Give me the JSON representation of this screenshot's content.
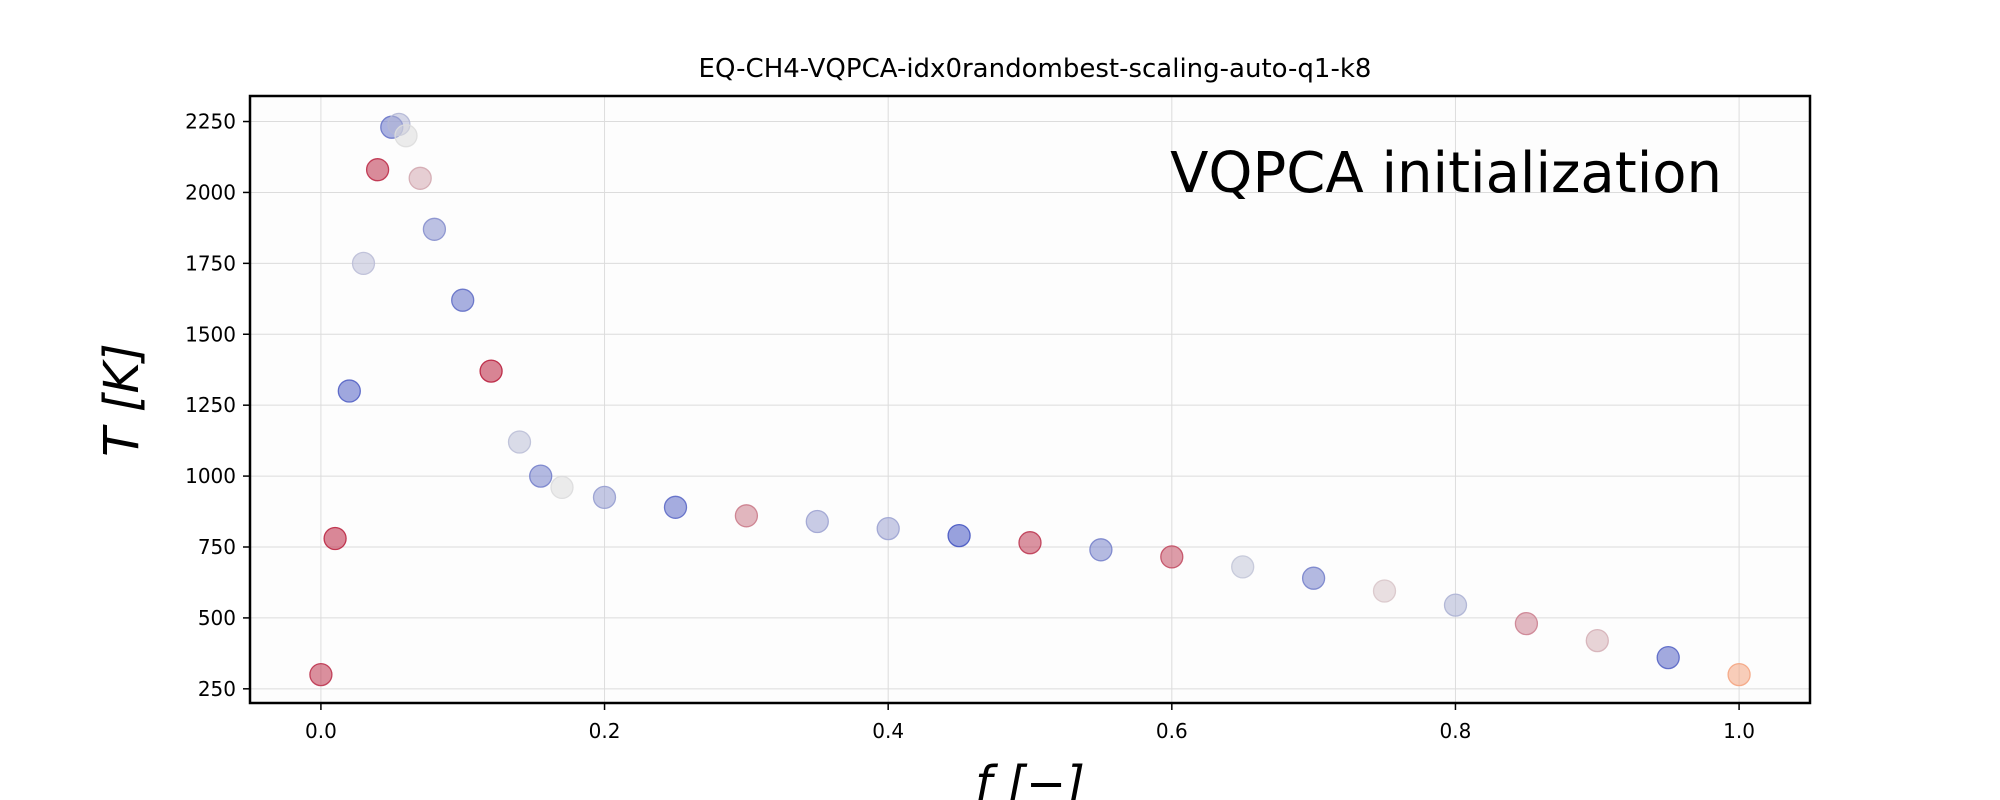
{
  "chart_data": {
    "type": "scatter",
    "title": "EQ-CH4-VQPCA-idx0randombest-scaling-auto-q1-k8",
    "xlabel": "f [−]",
    "ylabel": "T [K]",
    "annotation": "VQPCA initialization",
    "xlim": [
      -0.05,
      1.05
    ],
    "ylim": [
      200,
      2340
    ],
    "xticks": [
      0.0,
      0.2,
      0.4,
      0.6,
      0.8,
      1.0
    ],
    "xtick_labels": [
      "0.0",
      "0.2",
      "0.4",
      "0.6",
      "0.8",
      "1.0"
    ],
    "yticks": [
      250,
      500,
      750,
      1000,
      1250,
      1500,
      1750,
      2000,
      2250
    ],
    "ytick_labels": [
      "250",
      "500",
      "750",
      "1000",
      "1250",
      "1500",
      "1750",
      "2000",
      "2250"
    ],
    "grid": true,
    "colormap": "coolwarm",
    "colors": {
      "low": "#3b4cc0",
      "mid": "#dddddd",
      "high": "#b40426",
      "end_marker": "#f4a582"
    },
    "series": [
      {
        "x": [
          0.0,
          0.01,
          0.02,
          0.03,
          0.04,
          0.05,
          0.055,
          0.06,
          0.07,
          0.08,
          0.1,
          0.12,
          0.14,
          0.155,
          0.17,
          0.2,
          0.25,
          0.3,
          0.35,
          0.4,
          0.45,
          0.5,
          0.55,
          0.6,
          0.65,
          0.7,
          0.75,
          0.8,
          0.85,
          0.9,
          0.95,
          1.0
        ],
        "y": [
          300,
          780,
          1300,
          1750,
          2080,
          2230,
          2240,
          2200,
          2050,
          1870,
          1620,
          1370,
          1120,
          1000,
          960,
          925,
          890,
          860,
          840,
          815,
          790,
          765,
          740,
          715,
          680,
          640,
          595,
          545,
          480,
          420,
          360,
          300
        ]
      }
    ]
  }
}
